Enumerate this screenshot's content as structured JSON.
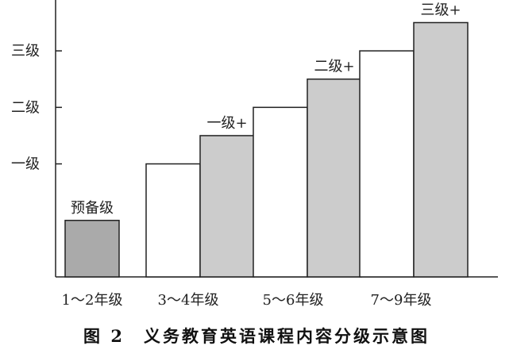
{
  "chart_data": {
    "type": "bar",
    "title": "图 2　义务教育英语课程内容分级示意图",
    "y_levels": [
      {
        "label": "一级",
        "value": 2
      },
      {
        "label": "二级",
        "value": 3
      },
      {
        "label": "三级",
        "value": 4
      }
    ],
    "ylim": [
      0,
      4.9
    ],
    "categories": [
      "1～2年级",
      "3～4年级",
      "5～6年级",
      "7～9年级"
    ],
    "groups": [
      {
        "category": "1～2年级",
        "bars": [
          {
            "label": "预备级",
            "value": 1,
            "color": "#aaaaaa"
          }
        ]
      },
      {
        "category": "3～4年级",
        "bars": [
          {
            "label": "",
            "value": 2,
            "color": "#ffffff"
          },
          {
            "label": "一级+",
            "value": 2.5,
            "color": "#cccccc"
          }
        ]
      },
      {
        "category": "5～6年级",
        "bars": [
          {
            "label": "",
            "value": 3,
            "color": "#ffffff"
          },
          {
            "label": "二级+",
            "value": 3.5,
            "color": "#cccccc"
          }
        ]
      },
      {
        "category": "7～9年级",
        "bars": [
          {
            "label": "",
            "value": 4,
            "color": "#ffffff"
          },
          {
            "label": "三级+",
            "value": 4.5,
            "color": "#cccccc"
          }
        ]
      }
    ],
    "grid": false,
    "legend": "none"
  }
}
